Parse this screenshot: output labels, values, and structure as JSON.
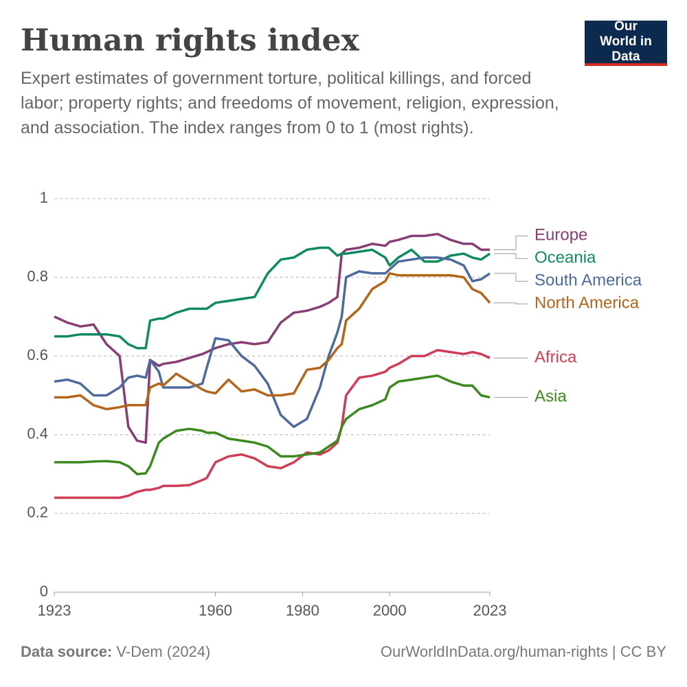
{
  "chart_data": {
    "type": "line",
    "title": "Human rights index",
    "subtitle": "Expert estimates of government torture, political killings, and forced labor; property rights; and freedoms of movement, religion, expression, and association. The index ranges from 0 to 1 (most rights).",
    "logo": "Our World in Data",
    "source_label": "Data source:",
    "source": "V-Dem (2024)",
    "footer_right": "OurWorldInData.org/human-rights | CC BY",
    "x": [
      1923,
      1926,
      1929,
      1932,
      1935,
      1938,
      1940,
      1942,
      1944,
      1945,
      1947,
      1948,
      1951,
      1954,
      1957,
      1958,
      1960,
      1963,
      1966,
      1969,
      1972,
      1975,
      1978,
      1981,
      1984,
      1986,
      1988,
      1989,
      1990,
      1993,
      1996,
      1999,
      2000,
      2002,
      2005,
      2008,
      2011,
      2014,
      2017,
      2019,
      2021,
      2023
    ],
    "xlim": [
      1923,
      2023
    ],
    "xticks": [
      1923,
      1960,
      1980,
      2000,
      2023
    ],
    "ylim": [
      0,
      1
    ],
    "yticks": [
      0,
      0.2,
      0.4,
      0.6,
      0.8,
      1
    ],
    "grid": true,
    "series": [
      {
        "name": "Europe",
        "color": "#883e73",
        "values": [
          0.7,
          0.685,
          0.675,
          0.68,
          0.63,
          0.6,
          0.42,
          0.385,
          0.38,
          0.59,
          0.575,
          0.58,
          0.585,
          0.595,
          0.605,
          0.61,
          0.62,
          0.63,
          0.635,
          0.63,
          0.635,
          0.685,
          0.71,
          0.715,
          0.725,
          0.735,
          0.75,
          0.86,
          0.87,
          0.875,
          0.885,
          0.88,
          0.89,
          0.895,
          0.905,
          0.905,
          0.91,
          0.895,
          0.885,
          0.885,
          0.87,
          0.87
        ]
      },
      {
        "name": "Oceania",
        "color": "#108a62",
        "values": [
          0.65,
          0.65,
          0.655,
          0.655,
          0.655,
          0.65,
          0.63,
          0.62,
          0.62,
          0.69,
          0.695,
          0.695,
          0.71,
          0.72,
          0.72,
          0.72,
          0.735,
          0.74,
          0.745,
          0.75,
          0.81,
          0.845,
          0.85,
          0.87,
          0.875,
          0.875,
          0.855,
          0.86,
          0.86,
          0.865,
          0.87,
          0.85,
          0.83,
          0.85,
          0.87,
          0.84,
          0.84,
          0.855,
          0.86,
          0.85,
          0.845,
          0.86
        ]
      },
      {
        "name": "South America",
        "color": "#4d6a9e",
        "values": [
          0.535,
          0.54,
          0.53,
          0.5,
          0.5,
          0.52,
          0.545,
          0.55,
          0.545,
          0.59,
          0.56,
          0.52,
          0.52,
          0.52,
          0.53,
          0.57,
          0.645,
          0.64,
          0.6,
          0.575,
          0.53,
          0.45,
          0.42,
          0.44,
          0.52,
          0.6,
          0.66,
          0.7,
          0.8,
          0.815,
          0.81,
          0.81,
          0.82,
          0.84,
          0.845,
          0.85,
          0.85,
          0.845,
          0.83,
          0.79,
          0.795,
          0.81
        ]
      },
      {
        "name": "North America",
        "color": "#b5651a",
        "values": [
          0.495,
          0.495,
          0.5,
          0.475,
          0.465,
          0.47,
          0.475,
          0.475,
          0.475,
          0.52,
          0.53,
          0.525,
          0.555,
          0.535,
          0.515,
          0.51,
          0.505,
          0.54,
          0.51,
          0.515,
          0.5,
          0.5,
          0.505,
          0.565,
          0.57,
          0.59,
          0.62,
          0.63,
          0.69,
          0.72,
          0.77,
          0.79,
          0.81,
          0.805,
          0.805,
          0.805,
          0.805,
          0.805,
          0.8,
          0.77,
          0.76,
          0.735
        ]
      },
      {
        "name": "Africa",
        "color": "#d13c56",
        "values": [
          0.24,
          0.24,
          0.24,
          0.24,
          0.24,
          0.24,
          0.245,
          0.255,
          0.26,
          0.26,
          0.265,
          0.27,
          0.27,
          0.272,
          0.285,
          0.29,
          0.33,
          0.345,
          0.35,
          0.34,
          0.32,
          0.315,
          0.33,
          0.355,
          0.35,
          0.36,
          0.38,
          0.42,
          0.5,
          0.545,
          0.55,
          0.56,
          0.57,
          0.58,
          0.6,
          0.6,
          0.615,
          0.61,
          0.605,
          0.61,
          0.605,
          0.595
        ]
      },
      {
        "name": "Asia",
        "color": "#3b8a1f",
        "values": [
          0.33,
          0.33,
          0.33,
          0.332,
          0.333,
          0.33,
          0.32,
          0.3,
          0.302,
          0.32,
          0.38,
          0.39,
          0.41,
          0.415,
          0.41,
          0.405,
          0.405,
          0.39,
          0.385,
          0.38,
          0.37,
          0.345,
          0.345,
          0.35,
          0.355,
          0.37,
          0.385,
          0.42,
          0.44,
          0.465,
          0.475,
          0.49,
          0.52,
          0.535,
          0.54,
          0.545,
          0.55,
          0.535,
          0.525,
          0.525,
          0.5,
          0.495
        ]
      }
    ]
  }
}
